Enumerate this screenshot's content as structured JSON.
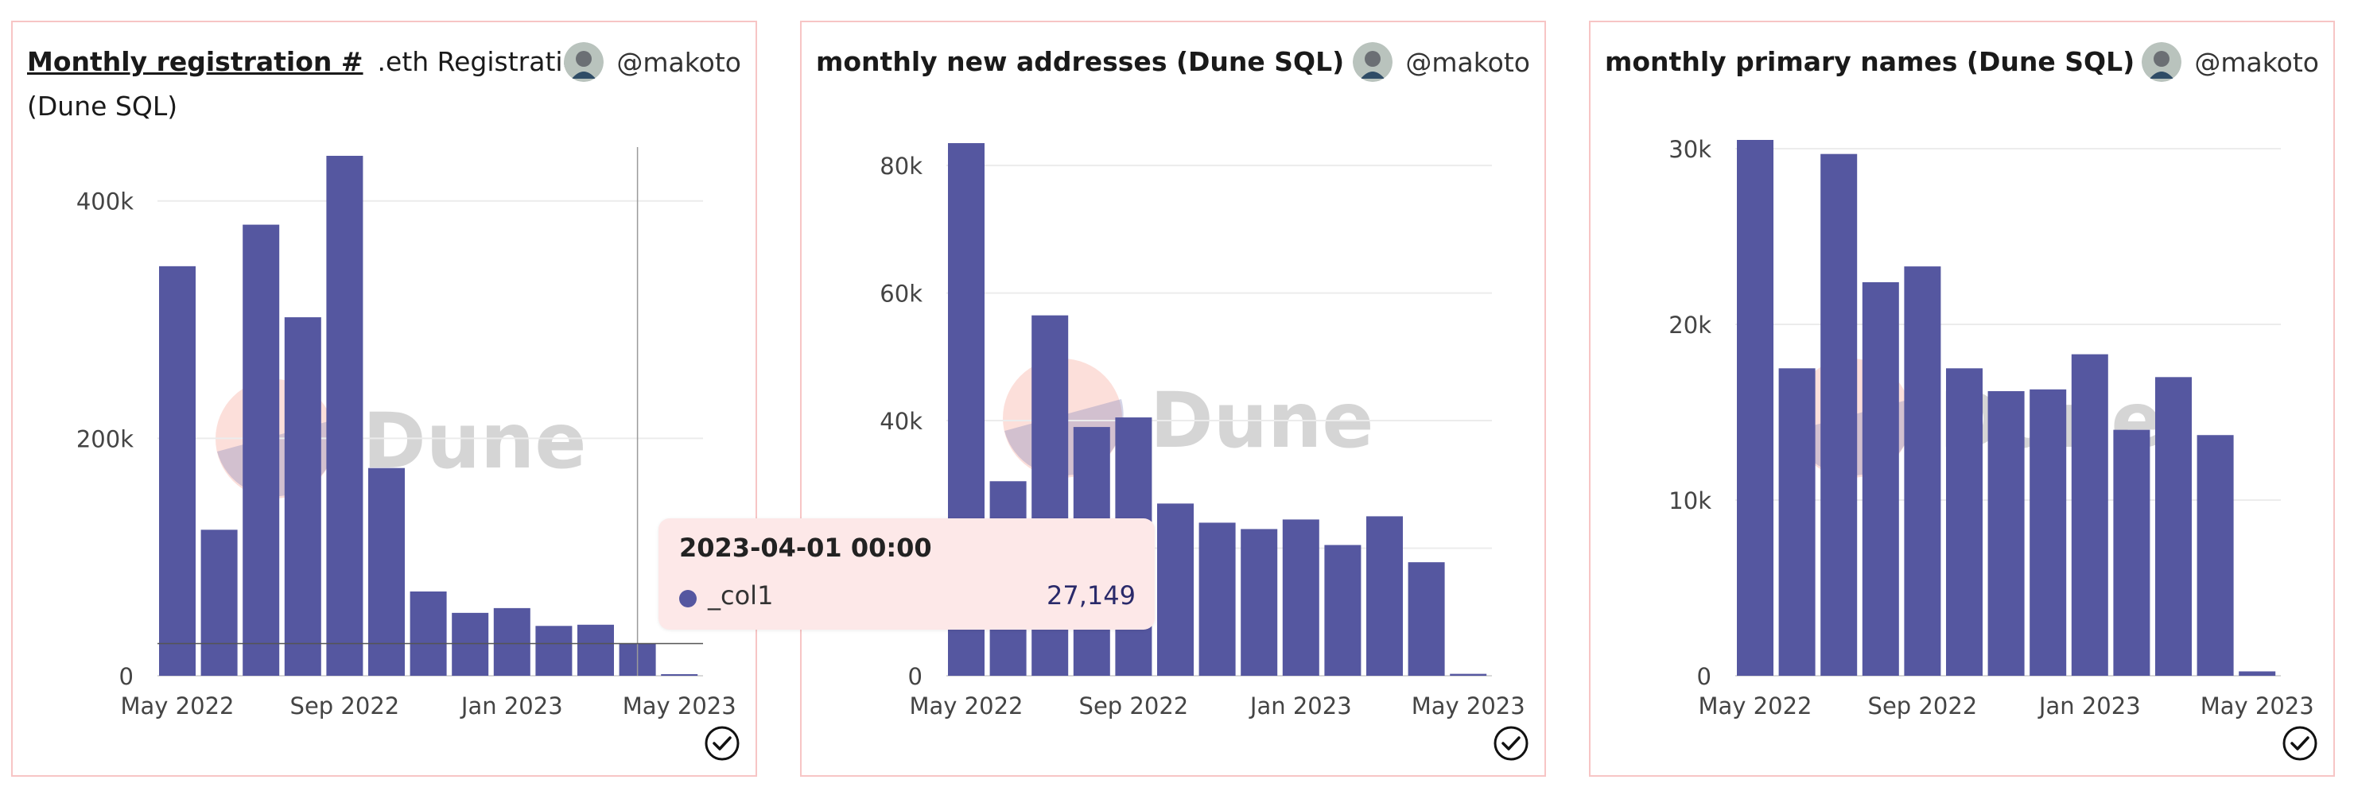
{
  "panels": [
    {
      "title_link": "Monthly registration #",
      "title_rest": ".eth Registration",
      "title_line2": "(Dune SQL)",
      "author": "@makoto"
    },
    {
      "title": "monthly new addresses (Dune SQL)",
      "author": "@makoto"
    },
    {
      "title": "monthly primary names (Dune SQL)",
      "author": "@makoto"
    }
  ],
  "watermark": "Dune",
  "tooltip": {
    "title": "2023-04-01 00:00",
    "series": "_col1",
    "value": "27,149"
  },
  "colors": {
    "bar": "#5557a0",
    "grid": "#ececec",
    "axis": "#444444",
    "border": "#f7c5c5"
  },
  "chart_data": [
    {
      "type": "bar",
      "x": [
        "2022-05",
        "2022-06",
        "2022-07",
        "2022-08",
        "2022-09",
        "2022-10",
        "2022-11",
        "2022-12",
        "2023-01",
        "2023-02",
        "2023-03",
        "2023-04",
        "2023-05"
      ],
      "series": [
        {
          "values": [
            345000,
            123000,
            380000,
            302000,
            438000,
            175000,
            71000,
            53000,
            57000,
            42000,
            43000,
            27149,
            0
          ]
        }
      ],
      "xticks": [
        {
          "label": "May 2022",
          "at": "2022-05"
        },
        {
          "label": "Sep 2022",
          "at": "2022-09"
        },
        {
          "label": "Jan 2023",
          "at": "2023-01"
        },
        {
          "label": "May 2023",
          "at": "2023-05"
        }
      ],
      "yticks": [
        {
          "label": "0",
          "value": 0
        },
        {
          "label": "200k",
          "value": 200000
        },
        {
          "label": "400k",
          "value": 400000
        }
      ],
      "ylim": [
        0,
        440000
      ],
      "hover": {
        "at": "2023-04",
        "value": 27149
      }
    },
    {
      "type": "bar",
      "x": [
        "2022-05",
        "2022-06",
        "2022-07",
        "2022-08",
        "2022-09",
        "2022-10",
        "2022-11",
        "2022-12",
        "2023-01",
        "2023-02",
        "2023-03",
        "2023-04",
        "2023-05"
      ],
      "series": [
        {
          "values": [
            83500,
            30500,
            56500,
            39000,
            40500,
            27000,
            24000,
            23000,
            24500,
            20500,
            25000,
            17800,
            300
          ]
        }
      ],
      "xticks": [
        {
          "label": "May 2022",
          "at": "2022-05"
        },
        {
          "label": "Sep 2022",
          "at": "2022-09"
        },
        {
          "label": "Jan 2023",
          "at": "2023-01"
        },
        {
          "label": "May 2023",
          "at": "2023-05"
        }
      ],
      "yticks": [
        {
          "label": "0",
          "value": 0
        },
        {
          "label": "40k",
          "value": 40000
        },
        {
          "label": "60k",
          "value": 60000
        },
        {
          "label": "80k",
          "value": 80000
        }
      ],
      "grid_values": [
        20000,
        40000,
        60000,
        80000
      ],
      "ylim": [
        0,
        85000
      ]
    },
    {
      "type": "bar",
      "x": [
        "2022-05",
        "2022-06",
        "2022-07",
        "2022-08",
        "2022-09",
        "2022-10",
        "2022-11",
        "2022-12",
        "2023-01",
        "2023-02",
        "2023-03",
        "2023-04",
        "2023-05"
      ],
      "series": [
        {
          "values": [
            30500,
            17500,
            29700,
            22400,
            23300,
            17500,
            16200,
            16300,
            18300,
            14000,
            17000,
            13700,
            250
          ]
        }
      ],
      "xticks": [
        {
          "label": "May 2022",
          "at": "2022-05"
        },
        {
          "label": "Sep 2022",
          "at": "2022-09"
        },
        {
          "label": "Jan 2023",
          "at": "2023-01"
        },
        {
          "label": "May 2023",
          "at": "2023-05"
        }
      ],
      "yticks": [
        {
          "label": "0",
          "value": 0
        },
        {
          "label": "10k",
          "value": 10000
        },
        {
          "label": "20k",
          "value": 20000
        },
        {
          "label": "30k",
          "value": 30000
        }
      ],
      "ylim": [
        0,
        30500
      ]
    }
  ]
}
